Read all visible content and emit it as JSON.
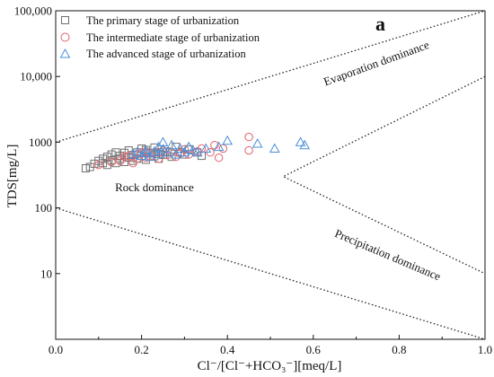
{
  "chart_data": {
    "type": "scatter",
    "panel_label": "a",
    "xlabel": "Cl⁻/[Cl⁻+HCO₃⁻][meq/L]",
    "ylabel": "TDS[mg/L]",
    "x_scale": "linear",
    "y_scale": "log",
    "xlim": [
      0.0,
      1.0
    ],
    "ylim": [
      1,
      100000
    ],
    "x_ticks": [
      {
        "value": 0.0,
        "label": "0.0"
      },
      {
        "value": 0.2,
        "label": "0.2"
      },
      {
        "value": 0.4,
        "label": "0.4"
      },
      {
        "value": 0.6,
        "label": "0.6"
      },
      {
        "value": 0.8,
        "label": "0.8"
      },
      {
        "value": 1.0,
        "label": "1.0"
      }
    ],
    "y_ticks": [
      {
        "value": 10,
        "label": "10"
      },
      {
        "value": 100,
        "label": "100"
      },
      {
        "value": 1000,
        "label": "1000"
      },
      {
        "value": 10000,
        "label": "10,000"
      },
      {
        "value": 100000,
        "label": "100,000"
      }
    ],
    "legend_position": "top-left",
    "grid": false,
    "series": [
      {
        "name": "The primary stage of urbanization",
        "marker": "square",
        "color": "#707070",
        "points": [
          [
            0.07,
            400
          ],
          [
            0.08,
            420
          ],
          [
            0.09,
            470
          ],
          [
            0.1,
            520
          ],
          [
            0.11,
            560
          ],
          [
            0.11,
            480
          ],
          [
            0.12,
            600
          ],
          [
            0.12,
            450
          ],
          [
            0.13,
            530
          ],
          [
            0.13,
            650
          ],
          [
            0.14,
            700
          ],
          [
            0.14,
            480
          ],
          [
            0.15,
            560
          ],
          [
            0.15,
            620
          ],
          [
            0.16,
            500
          ],
          [
            0.16,
            690
          ],
          [
            0.17,
            750
          ],
          [
            0.17,
            580
          ],
          [
            0.18,
            520
          ],
          [
            0.18,
            640
          ],
          [
            0.19,
            700
          ],
          [
            0.19,
            560
          ],
          [
            0.2,
            800
          ],
          [
            0.2,
            620
          ],
          [
            0.21,
            540
          ],
          [
            0.21,
            760
          ],
          [
            0.22,
            680
          ],
          [
            0.23,
            610
          ],
          [
            0.23,
            830
          ],
          [
            0.24,
            700
          ],
          [
            0.24,
            560
          ],
          [
            0.25,
            640
          ],
          [
            0.26,
            720
          ],
          [
            0.27,
            600
          ],
          [
            0.28,
            850
          ],
          [
            0.29,
            700
          ],
          [
            0.3,
            650
          ],
          [
            0.31,
            780
          ],
          [
            0.33,
            700
          ],
          [
            0.34,
            620
          ]
        ]
      },
      {
        "name": "The intermediate stage of urbanization",
        "marker": "circle",
        "color": "#e2606a",
        "points": [
          [
            0.1,
            450
          ],
          [
            0.13,
            500
          ],
          [
            0.15,
            520
          ],
          [
            0.16,
            600
          ],
          [
            0.17,
            620
          ],
          [
            0.18,
            480
          ],
          [
            0.19,
            560
          ],
          [
            0.19,
            650
          ],
          [
            0.2,
            680
          ],
          [
            0.21,
            580
          ],
          [
            0.21,
            720
          ],
          [
            0.22,
            610
          ],
          [
            0.23,
            700
          ],
          [
            0.24,
            560
          ],
          [
            0.25,
            750
          ],
          [
            0.26,
            640
          ],
          [
            0.27,
            700
          ],
          [
            0.28,
            600
          ],
          [
            0.29,
            680
          ],
          [
            0.3,
            780
          ],
          [
            0.31,
            650
          ],
          [
            0.33,
            720
          ],
          [
            0.34,
            800
          ],
          [
            0.36,
            700
          ],
          [
            0.37,
            900
          ],
          [
            0.38,
            580
          ],
          [
            0.39,
            800
          ],
          [
            0.45,
            1200
          ],
          [
            0.45,
            750
          ]
        ]
      },
      {
        "name": "The advanced stage of urbanization",
        "marker": "triangle",
        "color": "#4a8fd8",
        "points": [
          [
            0.18,
            650
          ],
          [
            0.19,
            700
          ],
          [
            0.2,
            620
          ],
          [
            0.21,
            750
          ],
          [
            0.21,
            680
          ],
          [
            0.22,
            600
          ],
          [
            0.23,
            720
          ],
          [
            0.24,
            850
          ],
          [
            0.24,
            660
          ],
          [
            0.25,
            1000
          ],
          [
            0.25,
            780
          ],
          [
            0.26,
            700
          ],
          [
            0.27,
            900
          ],
          [
            0.28,
            650
          ],
          [
            0.29,
            800
          ],
          [
            0.3,
            700
          ],
          [
            0.31,
            850
          ],
          [
            0.32,
            750
          ],
          [
            0.33,
            700
          ],
          [
            0.35,
            800
          ],
          [
            0.38,
            850
          ],
          [
            0.4,
            1050
          ],
          [
            0.47,
            950
          ],
          [
            0.51,
            800
          ],
          [
            0.57,
            1000
          ],
          [
            0.58,
            900
          ]
        ]
      }
    ],
    "boundaries": [
      {
        "points": [
          [
            0.0,
            1000
          ],
          [
            1.0,
            100000
          ]
        ]
      },
      {
        "points": [
          [
            0.0,
            100
          ],
          [
            1.0,
            1
          ]
        ]
      },
      {
        "points": [
          [
            1.0,
            10000
          ],
          [
            0.53,
            300
          ],
          [
            1.0,
            10
          ]
        ]
      }
    ],
    "region_labels": [
      {
        "text": "Evaporation dominance",
        "x": 0.75,
        "y": 14000,
        "rotate": -20
      },
      {
        "text": "Rock dominance",
        "x": 0.23,
        "y": 180,
        "rotate": 0
      },
      {
        "text": "Precipitation dominance",
        "x": 0.77,
        "y": 17,
        "rotate": 23
      }
    ]
  }
}
